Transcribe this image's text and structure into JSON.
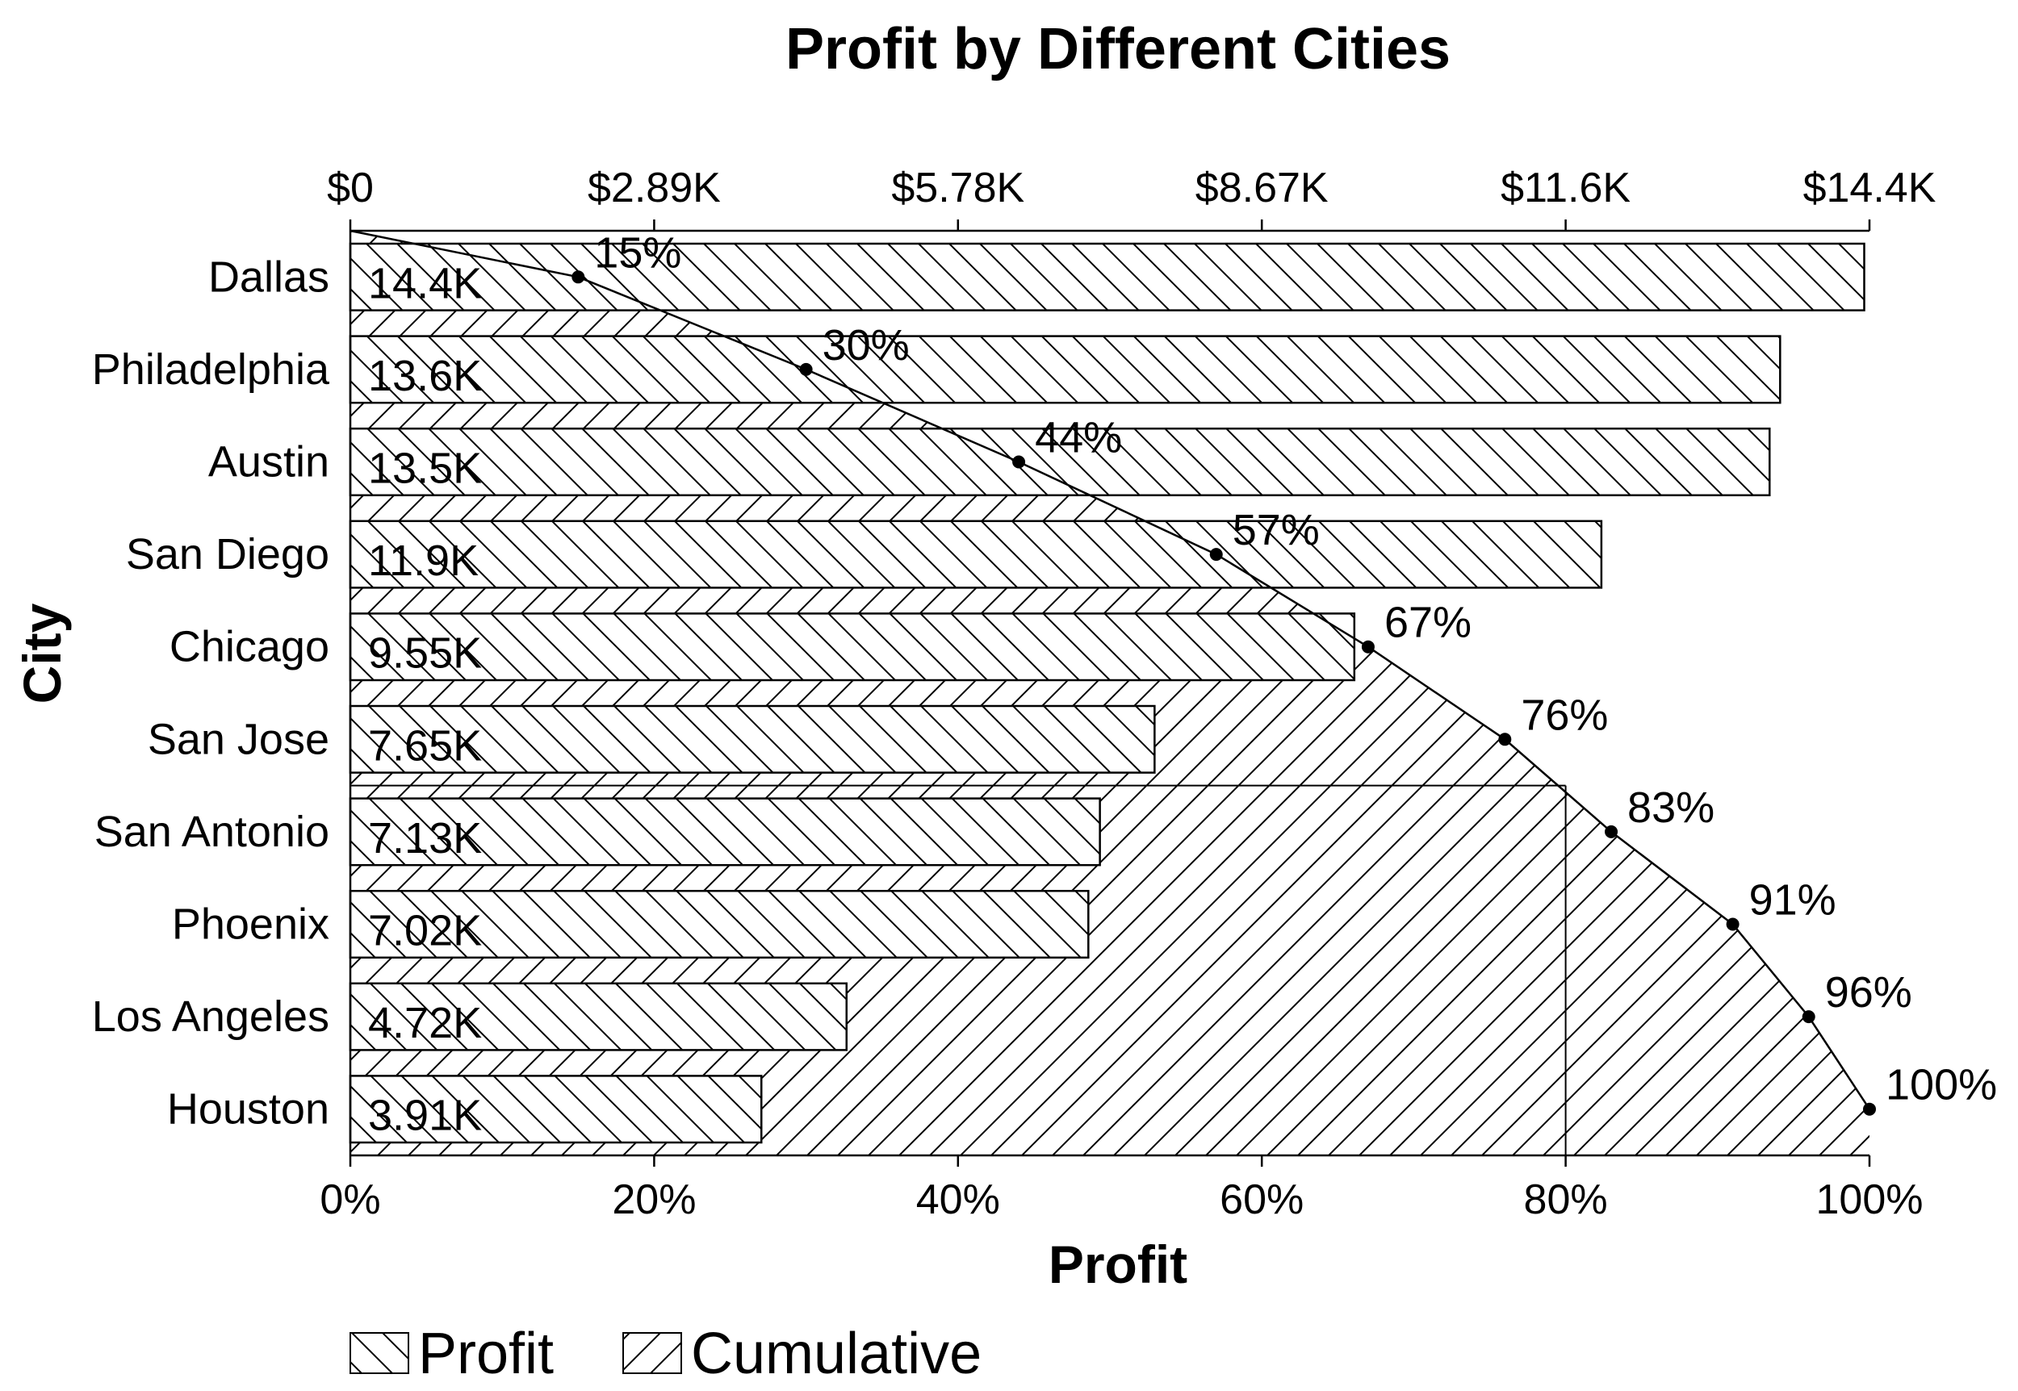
{
  "chart_data": {
    "type": "bar",
    "orientation": "horizontal",
    "title": "Profit by Different Cities",
    "xlabel": "Profit",
    "ylabel": "City",
    "categories": [
      "Dallas",
      "Philadelphia",
      "Austin",
      "San Diego",
      "Chicago",
      "San Jose",
      "San Antonio",
      "Phoenix",
      "Los Angeles",
      "Houston"
    ],
    "series": [
      {
        "name": "Profit",
        "values": [
          14400,
          13600,
          13500,
          11900,
          9550,
          7650,
          7130,
          7020,
          4720,
          3910
        ],
        "labels": [
          "14.4K",
          "13.6K",
          "13.5K",
          "11.9K",
          "9.55K",
          "7.65K",
          "7.13K",
          "7.02K",
          "4.72K",
          "3.91K"
        ],
        "pattern": "back-diagonal-hatch"
      },
      {
        "name": "Cumulative",
        "values": [
          15,
          30,
          44,
          57,
          67,
          76,
          83,
          91,
          96,
          100
        ],
        "labels": [
          "15%",
          "30%",
          "44%",
          "57%",
          "67%",
          "76%",
          "83%",
          "91%",
          "96%",
          "100%"
        ],
        "pattern": "forward-diagonal-hatch"
      }
    ],
    "top_axis": {
      "range": [
        0,
        14400
      ],
      "tick_values": [
        0,
        2890,
        5780,
        8670,
        11560,
        14450
      ],
      "tick_labels": [
        "$0",
        "$2.89K",
        "$5.78K",
        "$8.67K",
        "$11.6K",
        "$14.4K"
      ]
    },
    "bottom_axis": {
      "range": [
        0,
        100
      ],
      "tick_values": [
        0,
        20,
        40,
        60,
        80,
        100
      ],
      "tick_labels": [
        "0%",
        "20%",
        "40%",
        "60%",
        "80%",
        "100%"
      ]
    },
    "reference_line_percent": 80,
    "grid": false,
    "legend_position": "bottom-left",
    "colors": {
      "ink": "#000000",
      "fill": "#ffffff"
    }
  }
}
